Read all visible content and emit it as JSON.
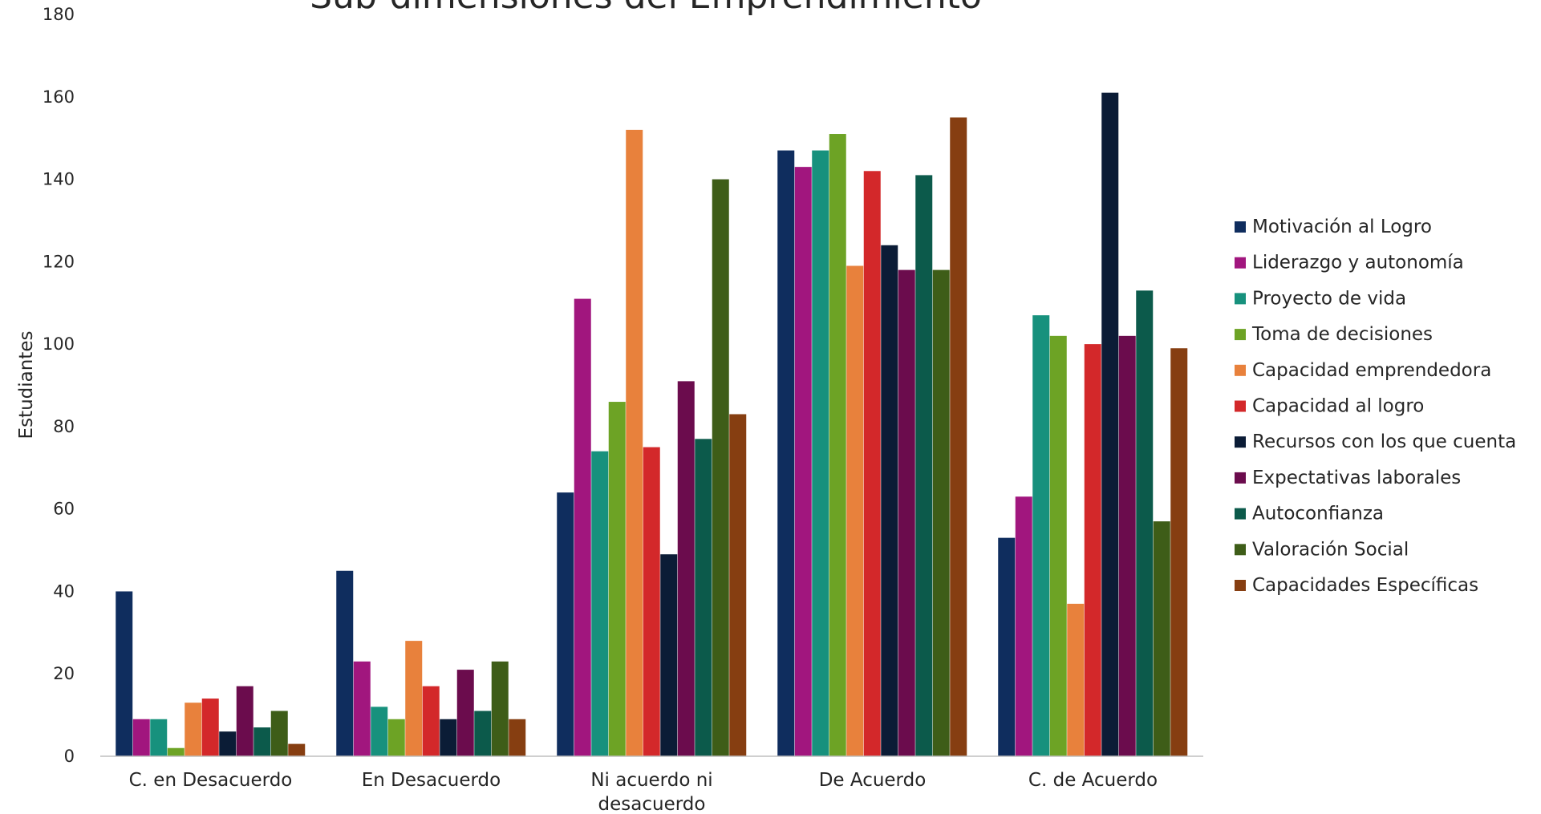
{
  "chart_data": {
    "type": "bar",
    "title": "Sub-dimensiones del Emprendimiento",
    "xlabel": "",
    "ylabel": "Estudiantes",
    "ylim": [
      0,
      180
    ],
    "yticks": [
      0,
      20,
      40,
      60,
      80,
      100,
      120,
      140,
      160,
      180
    ],
    "grid": false,
    "legend_position": "right",
    "categories": [
      [
        "C. en Desacuerdo"
      ],
      [
        "En Desacuerdo"
      ],
      [
        "Ni acuerdo ni",
        "desacuerdo"
      ],
      [
        "De Acuerdo"
      ],
      [
        "C. de Acuerdo"
      ]
    ],
    "series": [
      {
        "name": "Motivación al Logro",
        "color": "#0f2d5e",
        "values": [
          40,
          45,
          64,
          147,
          53
        ]
      },
      {
        "name": "Liderazgo y autonomía",
        "color": "#a1167e",
        "values": [
          9,
          23,
          111,
          143,
          63
        ]
      },
      {
        "name": "Proyecto de vida",
        "color": "#17917d",
        "values": [
          9,
          12,
          74,
          147,
          107
        ]
      },
      {
        "name": "Toma de decisiones",
        "color": "#6da325",
        "values": [
          2,
          9,
          86,
          151,
          102
        ]
      },
      {
        "name": "Capacidad emprendedora",
        "color": "#e8813c",
        "values": [
          13,
          28,
          152,
          119,
          37
        ]
      },
      {
        "name": "Capacidad al logro",
        "color": "#d3282a",
        "values": [
          14,
          17,
          75,
          142,
          100
        ]
      },
      {
        "name": "Recursos con los que cuenta",
        "color": "#0b1c36",
        "values": [
          6,
          9,
          49,
          124,
          161
        ]
      },
      {
        "name": "Expectativas laborales",
        "color": "#6b0c4d",
        "values": [
          17,
          21,
          91,
          118,
          102
        ]
      },
      {
        "name": "Autoconfianza",
        "color": "#0c5a4b",
        "values": [
          7,
          11,
          77,
          141,
          113
        ]
      },
      {
        "name": "Valoración Social",
        "color": "#3e5d18",
        "values": [
          11,
          23,
          140,
          118,
          57
        ]
      },
      {
        "name": "Capacidades Específicas",
        "color": "#863e11",
        "values": [
          3,
          9,
          83,
          155,
          99
        ]
      }
    ]
  }
}
